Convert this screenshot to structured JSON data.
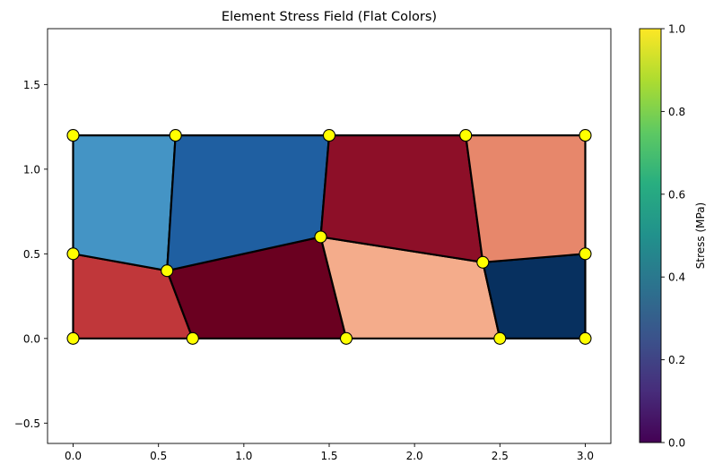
{
  "chart_data": {
    "type": "heatmap",
    "title": "Element Stress Field (Flat Colors)",
    "xlabel": "",
    "ylabel": "",
    "xlim": [
      -0.15,
      3.15
    ],
    "ylim": [
      -0.62,
      1.83
    ],
    "x_ticks": [
      "0.0",
      "0.5",
      "1.0",
      "1.5",
      "2.0",
      "2.5",
      "3.0"
    ],
    "y_ticks": [
      "−0.5",
      "0.0",
      "0.5",
      "1.0",
      "1.5"
    ],
    "x_tick_values": [
      0,
      0.5,
      1.0,
      1.5,
      2.0,
      2.5,
      3.0
    ],
    "y_tick_values": [
      -0.5,
      0,
      0.5,
      1.0,
      1.5
    ],
    "grid": false,
    "nodes": [
      [
        0,
        0
      ],
      [
        0.7,
        0
      ],
      [
        1.6,
        0
      ],
      [
        2.5,
        0
      ],
      [
        3.0,
        0
      ],
      [
        0,
        0.5
      ],
      [
        0.55,
        0.4
      ],
      [
        1.45,
        0.6
      ],
      [
        2.4,
        0.45
      ],
      [
        3.0,
        0.5
      ],
      [
        0,
        1.2
      ],
      [
        0.6,
        1.2
      ],
      [
        1.5,
        1.2
      ],
      [
        2.3,
        1.2
      ],
      [
        3.0,
        1.2
      ]
    ],
    "elements": [
      {
        "nodes": [
          0,
          1,
          6,
          5
        ],
        "color": "#c0373a"
      },
      {
        "nodes": [
          1,
          2,
          7,
          6
        ],
        "color": "#6a0020"
      },
      {
        "nodes": [
          2,
          3,
          8,
          7
        ],
        "color": "#f4ac8b"
      },
      {
        "nodes": [
          3,
          4,
          9,
          8
        ],
        "color": "#07305f"
      },
      {
        "nodes": [
          5,
          6,
          11,
          10
        ],
        "color": "#4494c5"
      },
      {
        "nodes": [
          6,
          7,
          12,
          11
        ],
        "color": "#1f5fa1"
      },
      {
        "nodes": [
          7,
          8,
          13,
          12
        ],
        "color": "#8d0f28"
      },
      {
        "nodes": [
          8,
          9,
          14,
          13
        ],
        "color": "#e7876b"
      }
    ],
    "node_color": "#ffff00",
    "colorbar": {
      "label": "Stress (MPa)",
      "min": 0.0,
      "max": 1.0,
      "ticks": [
        "0.0",
        "0.2",
        "0.4",
        "0.6",
        "0.8",
        "1.0"
      ],
      "tick_values": [
        0,
        0.2,
        0.4,
        0.6,
        0.8,
        1.0
      ],
      "colormap": "viridis"
    }
  }
}
